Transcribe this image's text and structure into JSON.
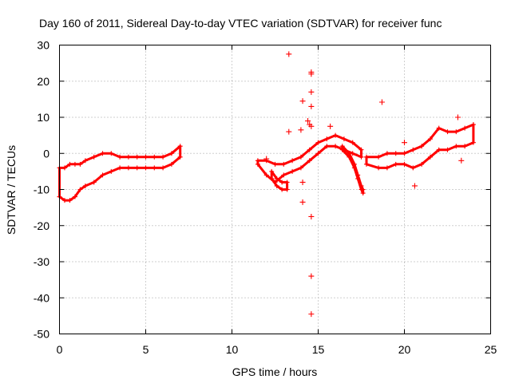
{
  "chart_data": {
    "type": "scatter",
    "title": "Day 160 of 2011, Sidereal Day-to-day VTEC variation (SDTVAR) for receiver func",
    "xlabel": "GPS time / hours",
    "ylabel": "SDTVAR / TECUs",
    "xlim": [
      0,
      25
    ],
    "ylim": [
      -50,
      30
    ],
    "xticks": [
      0,
      5,
      10,
      15,
      20,
      25
    ],
    "yticks": [
      -50,
      -40,
      -30,
      -20,
      -10,
      0,
      10,
      20,
      30
    ],
    "grid": true,
    "marker": "+",
    "color": "#ff0000",
    "series": [
      {
        "name": "dense-band-1",
        "kind": "band",
        "x": [
          0.0,
          0.3,
          0.6,
          0.9,
          1.2,
          1.5,
          2.0,
          2.5,
          3.0,
          3.5,
          4.0,
          4.5,
          5.0,
          5.5,
          6.0,
          6.5,
          7.0
        ],
        "upper": [
          -4,
          -4,
          -3,
          -3,
          -3,
          -2,
          -1,
          0,
          0,
          -1,
          -1,
          -1,
          -1,
          -1,
          -1,
          0,
          2
        ],
        "lower": [
          -12,
          -13,
          -13,
          -12,
          -10,
          -9,
          -8,
          -6,
          -5,
          -4,
          -4,
          -4,
          -4,
          -4,
          -4,
          -3,
          -1
        ]
      },
      {
        "name": "dense-band-2",
        "kind": "band",
        "x": [
          11.5,
          12.0,
          12.5,
          13.0,
          13.5,
          14.0,
          14.5,
          15.0,
          15.5,
          16.0,
          16.5,
          17.0,
          17.5
        ],
        "upper": [
          -2,
          -2,
          -3,
          -3,
          -2,
          -1,
          1,
          3,
          4,
          5,
          4,
          3,
          1
        ],
        "lower": [
          -3,
          -6,
          -8,
          -6,
          -5,
          -4,
          -2,
          0,
          2,
          2,
          1,
          0,
          -1
        ]
      },
      {
        "name": "arc-1",
        "kind": "band",
        "x": [
          16.4,
          16.8,
          17.1,
          17.3,
          17.5,
          17.6
        ],
        "upper": [
          2,
          0,
          -3,
          -6,
          -9,
          -10
        ],
        "lower": [
          1,
          -1,
          -4,
          -7,
          -10,
          -11
        ]
      },
      {
        "name": "arc-2",
        "kind": "band",
        "x": [
          12.3,
          12.6,
          12.9,
          13.2
        ],
        "upper": [
          -5,
          -7,
          -8,
          -8
        ],
        "lower": [
          -7,
          -9,
          -10,
          -10
        ]
      },
      {
        "name": "dense-band-3",
        "kind": "band",
        "x": [
          17.8,
          18.5,
          19.0,
          19.5,
          20.0,
          20.5,
          21.0,
          21.5,
          22.0,
          22.5,
          23.0,
          23.5,
          24.0
        ],
        "upper": [
          -1,
          -1,
          0,
          0,
          0,
          1,
          2,
          4,
          7,
          6,
          6,
          7,
          8
        ],
        "lower": [
          -3,
          -4,
          -4,
          -3,
          -3,
          -4,
          -3,
          -1,
          1,
          1,
          2,
          2,
          3
        ]
      },
      {
        "name": "outliers",
        "kind": "points",
        "x": [
          13.3,
          14.6,
          14.6,
          14.1,
          14.6,
          14.6,
          14.4,
          14.5,
          14.6,
          13.3,
          14.0,
          15.7,
          18.7,
          23.1,
          14.1,
          14.1,
          14.6,
          14.6,
          14.6,
          20.0,
          20.6,
          23.3,
          12.0
        ],
        "y": [
          27.5,
          22.5,
          22.0,
          14.5,
          17.0,
          13.0,
          9.0,
          8.0,
          7.5,
          6.0,
          6.5,
          7.5,
          14.2,
          10.0,
          -8.0,
          -13.5,
          -17.5,
          -34.0,
          -44.5,
          3.0,
          -9.0,
          -2.0,
          -1.5
        ]
      }
    ]
  }
}
